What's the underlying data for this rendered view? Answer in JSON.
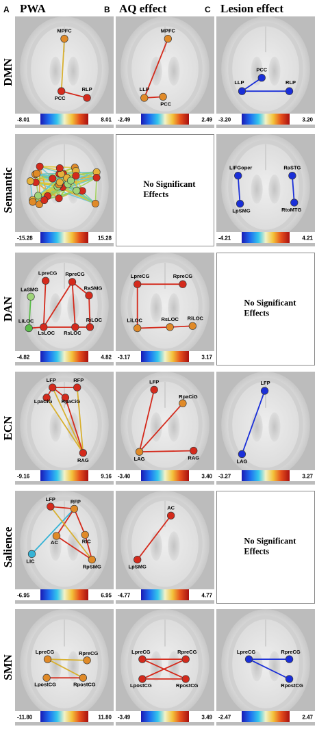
{
  "columns": [
    {
      "letter": "A",
      "title": "PWA"
    },
    {
      "letter": "B",
      "title": "AQ effect"
    },
    {
      "letter": "C",
      "title": "Lesion effect"
    }
  ],
  "rows": [
    "DMN",
    "Semantic",
    "DAN",
    "ECN",
    "Salience",
    "SMN"
  ],
  "no_effects_text": [
    "No Significant",
    "Effects"
  ],
  "colors": {
    "red": "#d42a1c",
    "orange": "#e08a28",
    "blue": "#1a2fd8",
    "green": "#5bbd4a",
    "lightgreen": "#9fd47a",
    "cyan": "#35b3d6",
    "gold": "#d8b030"
  },
  "panels": [
    {
      "row": 0,
      "col": 0,
      "type": "graph",
      "min": "-8.01",
      "max": "8.01",
      "nodes": [
        {
          "id": "MPFC",
          "label": "MPFC",
          "color": "orange"
        },
        {
          "id": "PCC",
          "label": "PCC",
          "color": "red"
        },
        {
          "id": "RLP",
          "label": "RLP",
          "color": "red"
        }
      ],
      "edges": [
        [
          "MPFC",
          "PCC",
          "gold"
        ],
        [
          "PCC",
          "RLP",
          "red"
        ]
      ]
    },
    {
      "row": 0,
      "col": 1,
      "type": "graph",
      "min": "-2.49",
      "max": "2.49",
      "nodes": [
        {
          "id": "MPFC",
          "label": "MPFC",
          "color": "orange"
        },
        {
          "id": "LLP",
          "label": "LLP",
          "color": "orange"
        },
        {
          "id": "PCC",
          "label": "PCC",
          "color": "orange"
        }
      ],
      "edges": [
        [
          "MPFC",
          "LLP",
          "red"
        ],
        [
          "LLP",
          "PCC",
          "red"
        ]
      ]
    },
    {
      "row": 0,
      "col": 2,
      "type": "graph",
      "min": "-3.20",
      "max": "3.20",
      "nodes": [
        {
          "id": "PCC",
          "label": "PCC",
          "color": "blue"
        },
        {
          "id": "LLP",
          "label": "LLP",
          "color": "blue"
        },
        {
          "id": "RLP",
          "label": "RLP",
          "color": "blue"
        }
      ],
      "edges": [
        [
          "LLP",
          "PCC",
          "blue"
        ],
        [
          "LLP",
          "RLP",
          "blue"
        ]
      ]
    },
    {
      "row": 1,
      "col": 0,
      "type": "dense",
      "min": "-15.28",
      "max": "15.28"
    },
    {
      "row": 1,
      "col": 1,
      "type": "empty"
    },
    {
      "row": 1,
      "col": 2,
      "type": "graph",
      "min": "-4.21",
      "max": "4.21",
      "nodes": [
        {
          "id": "LIFGoper",
          "label": "LIFGoper",
          "color": "blue"
        },
        {
          "id": "RaSTG",
          "label": "RaSTG",
          "color": "blue"
        },
        {
          "id": "LpSMG",
          "label": "LpSMG",
          "color": "blue"
        },
        {
          "id": "RtoMTG",
          "label": "RtoMTG",
          "color": "blue"
        }
      ],
      "edges": [
        [
          "LIFGoper",
          "LpSMG",
          "blue"
        ],
        [
          "RaSTG",
          "RtoMTG",
          "blue"
        ]
      ]
    },
    {
      "row": 2,
      "col": 0,
      "type": "graph",
      "min": "-4.82",
      "max": "4.82",
      "nodes": [
        {
          "id": "LpreCG",
          "label": "LpreCG",
          "color": "red"
        },
        {
          "id": "RpreCG",
          "label": "RpreCG",
          "color": "red"
        },
        {
          "id": "LaSMG",
          "label": "LaSMG",
          "color": "lightgreen"
        },
        {
          "id": "RaSMG",
          "label": "RaSMG",
          "color": "red"
        },
        {
          "id": "LiLOC",
          "label": "LiLOC",
          "color": "green"
        },
        {
          "id": "LsLOC",
          "label": "LsLOC",
          "color": "red"
        },
        {
          "id": "RsLOC",
          "label": "RsLOC",
          "color": "red"
        },
        {
          "id": "RiLOC",
          "label": "RiLOC",
          "color": "red"
        }
      ],
      "edges": [
        [
          "LpreCG",
          "LsLOC",
          "red"
        ],
        [
          "RpreCG",
          "LsLOC",
          "red"
        ],
        [
          "RpreCG",
          "RaSMG",
          "red"
        ],
        [
          "RaSMG",
          "RiLOC",
          "red"
        ],
        [
          "RpreCG",
          "RsLOC",
          "red"
        ],
        [
          "LaSMG",
          "LiLOC",
          "green"
        ],
        [
          "LiLOC",
          "LsLOC",
          "red"
        ],
        [
          "LsLOC",
          "RsLOC",
          "red"
        ],
        [
          "RsLOC",
          "RiLOC",
          "red"
        ],
        [
          "LsLOC",
          "RiLOC",
          "red"
        ]
      ]
    },
    {
      "row": 2,
      "col": 1,
      "type": "graph",
      "min": "-3.17",
      "max": "3.17",
      "nodes": [
        {
          "id": "LpreCG",
          "label": "LpreCG",
          "color": "red"
        },
        {
          "id": "RpreCG",
          "label": "RpreCG",
          "color": "red"
        },
        {
          "id": "LiLOC",
          "label": "LiLOC",
          "color": "orange"
        },
        {
          "id": "RsLOC",
          "label": "RsLOC",
          "color": "orange"
        },
        {
          "id": "RiLOC",
          "label": "RiLOC",
          "color": "orange"
        }
      ],
      "edges": [
        [
          "LpreCG",
          "RpreCG",
          "red"
        ],
        [
          "LpreCG",
          "LiLOC",
          "red"
        ],
        [
          "LiLOC",
          "RsLOC",
          "red"
        ],
        [
          "RsLOC",
          "RiLOC",
          "red"
        ]
      ]
    },
    {
      "row": 2,
      "col": 2,
      "type": "empty"
    },
    {
      "row": 3,
      "col": 0,
      "type": "graph",
      "min": "-9.16",
      "max": "9.16",
      "nodes": [
        {
          "id": "LFP",
          "label": "LFP",
          "color": "red"
        },
        {
          "id": "RFP",
          "label": "RFP",
          "color": "red"
        },
        {
          "id": "LpaCiG",
          "label": "LpaCiG",
          "color": "red"
        },
        {
          "id": "RpaCiG",
          "label": "RpaCiG",
          "color": "red"
        },
        {
          "id": "RAG",
          "label": "RAG",
          "color": "red"
        }
      ],
      "edges": [
        [
          "LFP",
          "RFP",
          "red"
        ],
        [
          "LFP",
          "LpaCiG",
          "red"
        ],
        [
          "LFP",
          "RpaCiG",
          "red"
        ],
        [
          "LFP",
          "RAG",
          "gold"
        ],
        [
          "RFP",
          "RAG",
          "gold"
        ],
        [
          "LpaCiG",
          "RAG",
          "gold"
        ],
        [
          "RpaCiG",
          "RAG",
          "red"
        ]
      ]
    },
    {
      "row": 3,
      "col": 1,
      "type": "graph",
      "min": "-3.40",
      "max": "3.40",
      "nodes": [
        {
          "id": "LFP",
          "label": "LFP",
          "color": "red"
        },
        {
          "id": "RpaCiG",
          "label": "RpaCiG",
          "color": "orange"
        },
        {
          "id": "LAG",
          "label": "LAG",
          "color": "orange"
        },
        {
          "id": "RAG",
          "label": "RAG",
          "color": "red"
        }
      ],
      "edges": [
        [
          "LFP",
          "LAG",
          "red"
        ],
        [
          "RpaCiG",
          "LAG",
          "red"
        ],
        [
          "LAG",
          "RAG",
          "red"
        ]
      ]
    },
    {
      "row": 3,
      "col": 2,
      "type": "graph",
      "min": "-3.27",
      "max": "3.27",
      "nodes": [
        {
          "id": "LFP",
          "label": "LFP",
          "color": "blue"
        },
        {
          "id": "LAG",
          "label": "LAG",
          "color": "blue"
        }
      ],
      "edges": [
        [
          "LFP",
          "LAG",
          "blue"
        ]
      ]
    },
    {
      "row": 4,
      "col": 0,
      "type": "graph",
      "min": "-6.95",
      "max": "6.95",
      "nodes": [
        {
          "id": "LFP",
          "label": "LFP",
          "color": "red"
        },
        {
          "id": "RFP",
          "label": "RFP",
          "color": "orange"
        },
        {
          "id": "AC",
          "label": "AC",
          "color": "orange"
        },
        {
          "id": "RIC",
          "label": "RIC",
          "color": "orange"
        },
        {
          "id": "LIC",
          "label": "LIC",
          "color": "cyan"
        },
        {
          "id": "RpSMG",
          "label": "RpSMG",
          "color": "orange"
        }
      ],
      "edges": [
        [
          "LFP",
          "RFP",
          "red"
        ],
        [
          "RFP",
          "LIC",
          "cyan"
        ],
        [
          "RFP",
          "AC",
          "red"
        ],
        [
          "RFP",
          "RIC",
          "red"
        ],
        [
          "LFP",
          "RpSMG",
          "gold"
        ],
        [
          "AC",
          "RpSMG",
          "red"
        ],
        [
          "RIC",
          "RpSMG",
          "red"
        ]
      ]
    },
    {
      "row": 4,
      "col": 1,
      "type": "graph",
      "min": "-4.77",
      "max": "4.77",
      "nodes": [
        {
          "id": "AC",
          "label": "AC",
          "color": "red"
        },
        {
          "id": "LpSMG",
          "label": "LpSMG",
          "color": "red"
        }
      ],
      "edges": [
        [
          "AC",
          "LpSMG",
          "red"
        ]
      ]
    },
    {
      "row": 4,
      "col": 2,
      "type": "empty"
    },
    {
      "row": 5,
      "col": 0,
      "type": "graph",
      "min": "-11.80",
      "max": "11.80",
      "nodes": [
        {
          "id": "LpreCG",
          "label": "LpreCG",
          "color": "orange"
        },
        {
          "id": "RpreCG",
          "label": "RpreCG",
          "color": "orange"
        },
        {
          "id": "LpostCG",
          "label": "LpostCG",
          "color": "orange"
        },
        {
          "id": "RpostCG",
          "label": "RpostCG",
          "color": "orange"
        }
      ],
      "edges": [
        [
          "LpreCG",
          "RpreCG",
          "gold"
        ],
        [
          "LpreCG",
          "RpostCG",
          "gold"
        ],
        [
          "LpostCG",
          "RpostCG",
          "red"
        ]
      ]
    },
    {
      "row": 5,
      "col": 1,
      "type": "graph",
      "min": "-3.49",
      "max": "3.49",
      "nodes": [
        {
          "id": "LpreCG",
          "label": "LpreCG",
          "color": "red"
        },
        {
          "id": "RpreCG",
          "label": "RpreCG",
          "color": "red"
        },
        {
          "id": "LpostCG",
          "label": "LpostCG",
          "color": "red"
        },
        {
          "id": "RpostCG",
          "label": "RpostCG",
          "color": "red"
        }
      ],
      "edges": [
        [
          "LpreCG",
          "RpreCG",
          "red"
        ],
        [
          "LpreCG",
          "RpostCG",
          "red"
        ],
        [
          "LpostCG",
          "RpreCG",
          "red"
        ],
        [
          "LpostCG",
          "RpostCG",
          "red"
        ]
      ]
    },
    {
      "row": 5,
      "col": 2,
      "type": "graph",
      "min": "-2.47",
      "max": "2.47",
      "nodes": [
        {
          "id": "LpreCG",
          "label": "LpreCG",
          "color": "blue"
        },
        {
          "id": "RpreCG",
          "label": "RpreCG",
          "color": "blue"
        },
        {
          "id": "RpostCG",
          "label": "RpostCG",
          "color": "blue"
        }
      ],
      "edges": [
        [
          "LpreCG",
          "RpreCG",
          "blue"
        ],
        [
          "LpreCG",
          "RpostCG",
          "blue"
        ]
      ]
    }
  ]
}
